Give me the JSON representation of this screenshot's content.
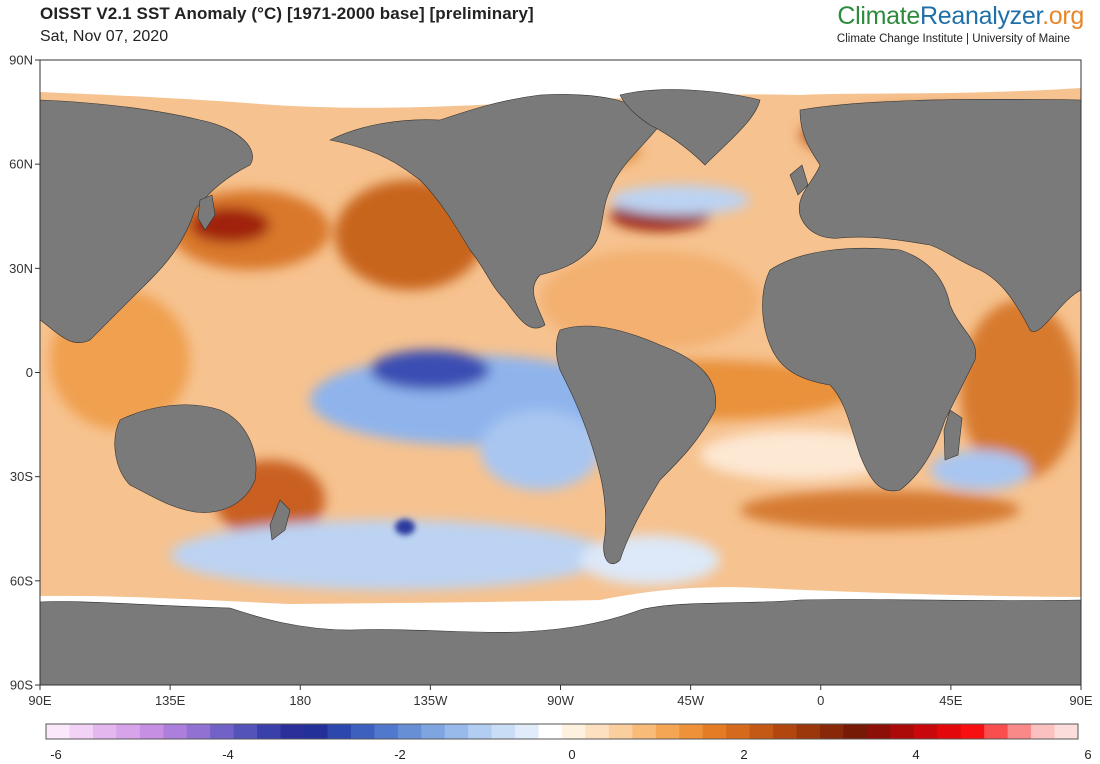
{
  "header": {
    "title": "OISST V2.1 SST Anomaly (°C) [1971-2000 base] [preliminary]",
    "date": "Sat, Nov 07, 2020"
  },
  "brand": {
    "part1": "Climate",
    "part2": "Reanalyzer",
    "part3": ".org",
    "color1": "#2e8b3e",
    "color2": "#1f6fa8",
    "color3": "#e8862a",
    "subtitle": "Climate Change Institute | University of Maine"
  },
  "map": {
    "land_color": "#7a7a7a",
    "ice_color": "#ffffff",
    "lat_ticks": [
      "90N",
      "60N",
      "30N",
      "0",
      "30S",
      "60S",
      "90S"
    ],
    "lon_ticks": [
      "90E",
      "135E",
      "180",
      "135W",
      "90W",
      "45W",
      "0",
      "45E",
      "90E"
    ]
  },
  "colorbar": {
    "min": -6,
    "max": 6,
    "labels": [
      "-6",
      "-4",
      "-2",
      "0",
      "2",
      "4",
      "6"
    ],
    "colors": [
      "#fbe9fb",
      "#f2d3f5",
      "#e4b8ef",
      "#d7a3ea",
      "#c78fe3",
      "#ad7fdc",
      "#9172d3",
      "#7262c8",
      "#5353b9",
      "#3a40aa",
      "#2a2f9a",
      "#23309a",
      "#2c47ad",
      "#3d60bf",
      "#5078cc",
      "#678fd6",
      "#7fa5e0",
      "#98baea",
      "#b1cdf1",
      "#c9def6",
      "#e0ecfa",
      "#ffffff",
      "#fff1df",
      "#fde0bf",
      "#fbcf9d",
      "#f8bb78",
      "#f4a655",
      "#ef9138",
      "#e47c25",
      "#d66a1c",
      "#c45815",
      "#b1470f",
      "#9c360b",
      "#882808",
      "#761a06",
      "#8e0f08",
      "#ab0a09",
      "#c8080a",
      "#e2080b",
      "#f7100f",
      "#f84e4e",
      "#f98888",
      "#fbc1c1",
      "#fddcdc"
    ]
  }
}
